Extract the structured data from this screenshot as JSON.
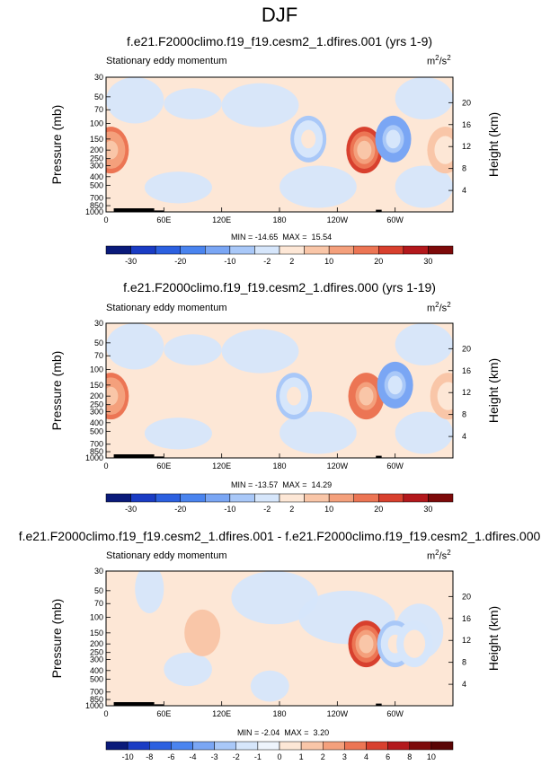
{
  "figure_title": "DJF",
  "colorbar_colors_a": [
    "#0a1a7a",
    "#1a3cc4",
    "#2c60e0",
    "#4a84ef",
    "#7aa6f4",
    "#a9c8f8",
    "#d6e6fb",
    "#fde7d6",
    "#f9c6a8",
    "#f4a07c",
    "#ec7554",
    "#d8402e",
    "#b3181c",
    "#7d0a0a"
  ],
  "colorbar_colors_b": [
    "#0a1a7a",
    "#1a3cc4",
    "#2c60e0",
    "#4a84ef",
    "#7aa6f4",
    "#a9c8f8",
    "#d6e6fb",
    "#fde7d6",
    "#f9c6a8",
    "#f4a07c",
    "#ec7554",
    "#d8402e",
    "#b3181c",
    "#7d0a0a"
  ],
  "panels": [
    {
      "title": "f.e21.F2000climo.f19_f19.cesm2_1.dfires.001 (yrs 1-9)",
      "subtitle": "Stationary eddy momentum",
      "units": "m",
      "units_sup": "2",
      "units_tail": "/s",
      "units_sup2": "2",
      "min_label": "MIN = -14.65",
      "max_label": "MAX =  15.54",
      "cb_labels": [
        "-30",
        "-20",
        "-10",
        "-2",
        "2",
        "10",
        "20",
        "30"
      ]
    },
    {
      "title": "f.e21.F2000climo.f19_f19.cesm2_1.dfires.000 (yrs 1-19)",
      "subtitle": "Stationary eddy momentum",
      "units": "m",
      "units_sup": "2",
      "units_tail": "/s",
      "units_sup2": "2",
      "min_label": "MIN = -13.57",
      "max_label": "MAX =  14.29",
      "cb_labels": [
        "-30",
        "-20",
        "-10",
        "-2",
        "2",
        "10",
        "20",
        "30"
      ]
    },
    {
      "title": "f.e21.F2000climo.f19_f19.cesm2_1.dfires.001 - f.e21.F2000climo.f19_f19.cesm2_1.dfires.000",
      "subtitle": "Stationary eddy momentum",
      "units": "m",
      "units_sup": "2",
      "units_tail": "/s",
      "units_sup2": "2",
      "min_label": "MIN = -2.04",
      "max_label": "MAX =  3.20",
      "cb_labels": [
        "-10",
        "-8",
        "-6",
        "-4",
        "-3",
        "-2",
        "-1",
        "0",
        "1",
        "2",
        "3",
        "4",
        "6",
        "8",
        "10"
      ]
    }
  ],
  "chart_data": [
    {
      "type": "heatmap",
      "title": "f.e21.F2000climo.f19_f19.cesm2_1.dfires.001 (yrs 1-9)",
      "xlabel": "",
      "ylabel": "Pressure (mb)",
      "ylabel_right": "Height (km)",
      "xticks": [
        "0",
        "60E",
        "120E",
        "180",
        "120W",
        "60W"
      ],
      "yticks": [
        "30",
        "50",
        "70",
        "100",
        "150",
        "200",
        "250",
        "300",
        "400",
        "500",
        "700",
        "850",
        "1000"
      ],
      "yticks_right": [
        "4",
        "8",
        "12",
        "16",
        "20"
      ],
      "min": -14.65,
      "max": 15.54,
      "features": [
        {
          "lon": 5,
          "p": 200,
          "value": 12
        },
        {
          "lon": 210,
          "p": 150,
          "value": -6
        },
        {
          "lon": 268,
          "p": 200,
          "value": 15.5
        },
        {
          "lon": 298,
          "p": 150,
          "value": -14.6
        },
        {
          "lon": 352,
          "p": 200,
          "value": 4
        }
      ]
    },
    {
      "type": "heatmap",
      "title": "f.e21.F2000climo.f19_f19.cesm2_1.dfires.000 (yrs 1-19)",
      "xlabel": "",
      "ylabel": "Pressure (mb)",
      "ylabel_right": "Height (km)",
      "xticks": [
        "0",
        "60E",
        "120E",
        "180",
        "120W",
        "60W"
      ],
      "yticks": [
        "30",
        "50",
        "70",
        "100",
        "150",
        "200",
        "250",
        "300",
        "400",
        "500",
        "700",
        "850",
        "1000"
      ],
      "yticks_right": [
        "4",
        "8",
        "12",
        "16",
        "20"
      ],
      "min": -13.57,
      "max": 14.29,
      "features": [
        {
          "lon": 5,
          "p": 200,
          "value": 11
        },
        {
          "lon": 195,
          "p": 200,
          "value": -5
        },
        {
          "lon": 270,
          "p": 200,
          "value": 14.3
        },
        {
          "lon": 300,
          "p": 150,
          "value": -13.5
        },
        {
          "lon": 355,
          "p": 200,
          "value": 4
        }
      ]
    },
    {
      "type": "heatmap",
      "title": "f.e21.F2000climo.f19_f19.cesm2_1.dfires.001 - f.e21.F2000climo.f19_f19.cesm2_1.dfires.000",
      "xlabel": "",
      "ylabel": "Pressure (mb)",
      "ylabel_right": "Height (km)",
      "xticks": [
        "0",
        "60E",
        "120E",
        "180",
        "120W",
        "60W"
      ],
      "yticks": [
        "30",
        "50",
        "70",
        "100",
        "150",
        "200",
        "250",
        "300",
        "400",
        "500",
        "700",
        "850",
        "1000"
      ],
      "yticks_right": [
        "4",
        "8",
        "12",
        "16",
        "20"
      ],
      "min": -2.04,
      "max": 3.2,
      "features": [
        {
          "lon": 270,
          "p": 200,
          "value": 3.2
        },
        {
          "lon": 300,
          "p": 200,
          "value": -2.0
        },
        {
          "lon": 320,
          "p": 200,
          "value": -1.5
        },
        {
          "lon": 100,
          "p": 150,
          "value": 1.0
        }
      ]
    }
  ]
}
